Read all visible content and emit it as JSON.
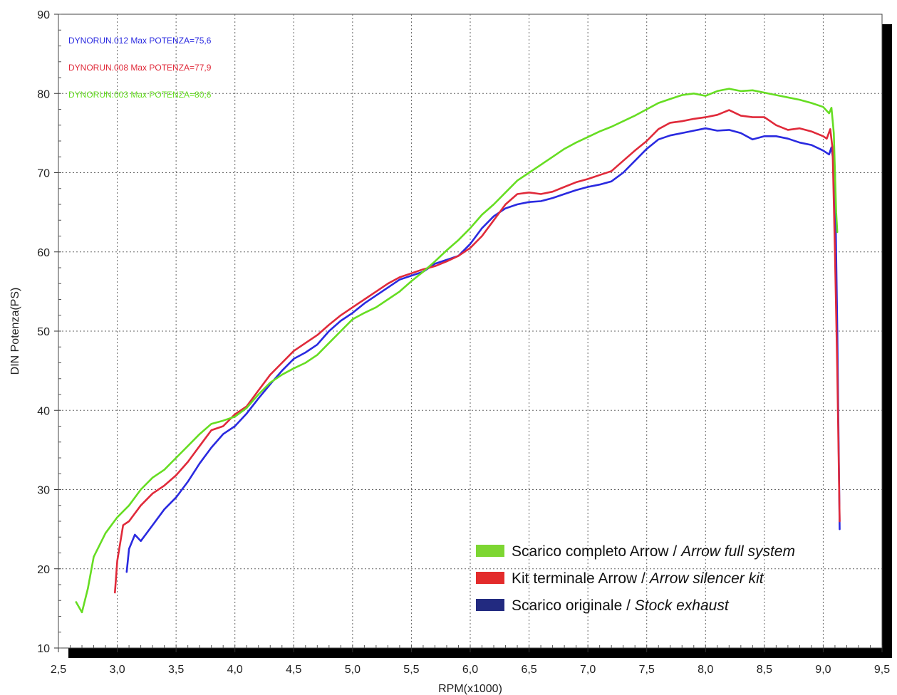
{
  "chart_data": {
    "type": "line",
    "xlabel": "RPM(x1000)",
    "ylabel": "DIN Potenza(PS)",
    "xlim": [
      2.5,
      9.5
    ],
    "ylim": [
      10,
      90
    ],
    "x_ticks": [
      "2,5",
      "3,0",
      "3,5",
      "4,0",
      "4,5",
      "5,0",
      "5,5",
      "6,0",
      "6,5",
      "7,0",
      "7,5",
      "8,0",
      "8,5",
      "9,0",
      "9,5"
    ],
    "y_ticks": [
      "10",
      "20",
      "30",
      "40",
      "50",
      "60",
      "70",
      "80",
      "90"
    ],
    "grid": true,
    "legend_position": "bottom-right",
    "run_labels": [
      {
        "text": "DYNORUN.012  Max POTENZA=75,6",
        "color": "#2a2ae0"
      },
      {
        "text": "DYNORUN.008  Max POTENZA=77,9",
        "color": "#e02a3a"
      },
      {
        "text": "DYNORUN.003  Max POTENZA=80,6",
        "color": "#66dd22"
      }
    ],
    "legend": [
      {
        "pre": "Scarico completo Arrow / ",
        "italic": "Arrow full system",
        "color": "#7dd632"
      },
      {
        "pre": "Kit terminale Arrow / ",
        "italic": "Arrow silencer kit",
        "color": "#e32b2b"
      },
      {
        "pre": "Scarico originale / ",
        "italic": "Stock exhaust",
        "color": "#222a80"
      }
    ],
    "series": [
      {
        "color": "#2a2ae0",
        "x": [
          3.08,
          3.1,
          3.15,
          3.2,
          3.3,
          3.4,
          3.5,
          3.6,
          3.7,
          3.8,
          3.9,
          4.0,
          4.1,
          4.2,
          4.3,
          4.4,
          4.5,
          4.6,
          4.7,
          4.8,
          4.9,
          5.0,
          5.1,
          5.2,
          5.3,
          5.4,
          5.5,
          5.6,
          5.7,
          5.8,
          5.9,
          6.0,
          6.1,
          6.2,
          6.3,
          6.4,
          6.5,
          6.6,
          6.7,
          6.8,
          6.9,
          7.0,
          7.1,
          7.2,
          7.3,
          7.4,
          7.5,
          7.6,
          7.7,
          7.8,
          7.9,
          8.0,
          8.1,
          8.2,
          8.3,
          8.4,
          8.5,
          8.6,
          8.7,
          8.8,
          8.9,
          9.0,
          9.05,
          9.07,
          9.1,
          9.12,
          9.14
        ],
        "values": [
          19.6,
          22.5,
          24.3,
          23.5,
          25.5,
          27.5,
          29.0,
          31.0,
          33.3,
          35.3,
          37.0,
          38.0,
          39.6,
          41.5,
          43.3,
          45.0,
          46.5,
          47.3,
          48.3,
          50.0,
          51.3,
          52.3,
          53.5,
          54.5,
          55.5,
          56.5,
          57.0,
          57.5,
          58.5,
          59.0,
          59.5,
          61.0,
          63.0,
          64.5,
          65.5,
          66.0,
          66.3,
          66.4,
          66.8,
          67.3,
          67.8,
          68.2,
          68.5,
          68.9,
          70.0,
          71.5,
          73.0,
          74.2,
          74.7,
          75.0,
          75.3,
          75.6,
          75.3,
          75.4,
          75.0,
          74.2,
          74.6,
          74.6,
          74.3,
          73.8,
          73.5,
          72.8,
          72.3,
          73.2,
          70.0,
          50.0,
          25.0
        ]
      },
      {
        "color": "#e02a3a",
        "x": [
          2.98,
          3.0,
          3.05,
          3.1,
          3.2,
          3.3,
          3.4,
          3.5,
          3.6,
          3.7,
          3.8,
          3.9,
          4.0,
          4.1,
          4.2,
          4.3,
          4.4,
          4.5,
          4.6,
          4.7,
          4.8,
          4.9,
          5.0,
          5.1,
          5.2,
          5.3,
          5.4,
          5.5,
          5.6,
          5.7,
          5.8,
          5.9,
          6.0,
          6.1,
          6.2,
          6.3,
          6.4,
          6.5,
          6.6,
          6.7,
          6.8,
          6.9,
          7.0,
          7.1,
          7.2,
          7.3,
          7.4,
          7.5,
          7.6,
          7.7,
          7.8,
          7.9,
          8.0,
          8.1,
          8.2,
          8.3,
          8.4,
          8.5,
          8.6,
          8.7,
          8.8,
          8.9,
          9.0,
          9.03,
          9.06,
          9.08,
          9.1,
          9.12,
          9.14
        ],
        "values": [
          17.0,
          21.0,
          25.5,
          26.0,
          28.0,
          29.5,
          30.5,
          31.8,
          33.5,
          35.5,
          37.5,
          38.0,
          39.5,
          40.5,
          42.5,
          44.5,
          46.0,
          47.5,
          48.5,
          49.5,
          50.8,
          52.0,
          53.0,
          54.0,
          55.0,
          56.0,
          56.8,
          57.3,
          57.8,
          58.2,
          58.8,
          59.5,
          60.5,
          62.0,
          64.0,
          66.0,
          67.3,
          67.5,
          67.3,
          67.6,
          68.2,
          68.8,
          69.2,
          69.7,
          70.2,
          71.5,
          72.8,
          74.0,
          75.5,
          76.3,
          76.5,
          76.8,
          77.0,
          77.3,
          77.9,
          77.2,
          77.0,
          77.0,
          76.0,
          75.4,
          75.6,
          75.2,
          74.6,
          74.3,
          75.5,
          73.0,
          60.0,
          45.0,
          26.0
        ]
      },
      {
        "color": "#66dd22",
        "x": [
          2.65,
          2.7,
          2.75,
          2.8,
          2.9,
          3.0,
          3.1,
          3.2,
          3.3,
          3.4,
          3.5,
          3.6,
          3.7,
          3.8,
          3.9,
          4.0,
          4.1,
          4.2,
          4.3,
          4.4,
          4.5,
          4.6,
          4.7,
          4.8,
          4.9,
          5.0,
          5.1,
          5.2,
          5.3,
          5.4,
          5.5,
          5.6,
          5.7,
          5.8,
          5.9,
          6.0,
          6.1,
          6.2,
          6.3,
          6.4,
          6.5,
          6.6,
          6.7,
          6.8,
          6.9,
          7.0,
          7.1,
          7.2,
          7.3,
          7.4,
          7.5,
          7.6,
          7.7,
          7.8,
          7.9,
          8.0,
          8.1,
          8.2,
          8.3,
          8.4,
          8.5,
          8.6,
          8.7,
          8.8,
          8.9,
          9.0,
          9.05,
          9.07,
          9.09,
          9.11,
          9.12
        ],
        "values": [
          15.8,
          14.5,
          17.5,
          21.5,
          24.5,
          26.5,
          28.0,
          30.0,
          31.5,
          32.5,
          34.0,
          35.5,
          37.0,
          38.3,
          38.7,
          39.2,
          40.3,
          42.0,
          43.5,
          44.5,
          45.3,
          46.0,
          47.0,
          48.5,
          50.0,
          51.5,
          52.3,
          53.0,
          54.0,
          55.0,
          56.3,
          57.5,
          58.8,
          60.2,
          61.5,
          63.0,
          64.7,
          66.0,
          67.5,
          69.0,
          70.0,
          71.0,
          72.0,
          73.0,
          73.8,
          74.5,
          75.2,
          75.8,
          76.5,
          77.2,
          78.0,
          78.8,
          79.3,
          79.8,
          80.0,
          79.7,
          80.3,
          80.6,
          80.3,
          80.4,
          80.1,
          79.8,
          79.5,
          79.2,
          78.8,
          78.3,
          77.5,
          78.2,
          75.0,
          65.0,
          62.5
        ]
      }
    ]
  }
}
